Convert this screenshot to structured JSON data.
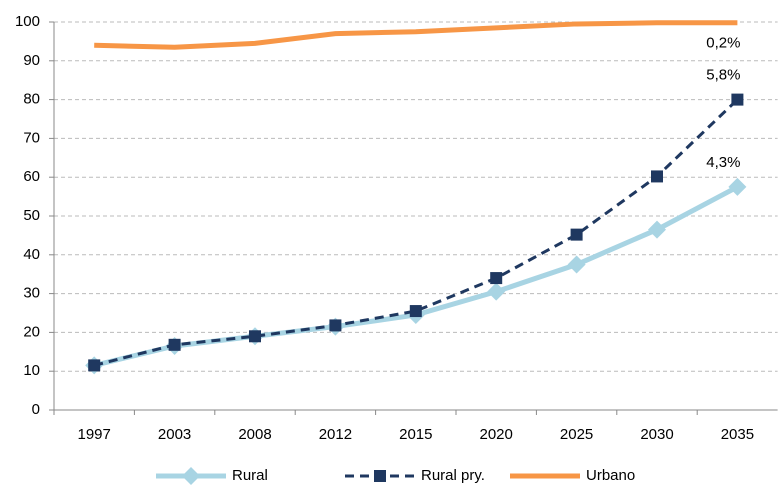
{
  "chart_data": {
    "type": "line",
    "categories": [
      "1997",
      "2003",
      "2008",
      "2012",
      "2015",
      "2020",
      "2025",
      "2030",
      "2035"
    ],
    "series": [
      {
        "name": "Rural",
        "color": "#a8d4e3",
        "marker": "diamond",
        "dash": false,
        "values": [
          11.5,
          16.5,
          19,
          21.5,
          24.5,
          30.5,
          37.5,
          46.5,
          57.5
        ],
        "end_label": "4,3%"
      },
      {
        "name": "Rural pry.",
        "color": "#1f3860",
        "marker": "square",
        "dash": true,
        "values": [
          11.5,
          16.8,
          19,
          21.8,
          25.5,
          34,
          45.2,
          60.2,
          80
        ],
        "end_label": "5,8%"
      },
      {
        "name": "Urbano",
        "color": "#f79646",
        "marker": "none",
        "dash": false,
        "values": [
          94,
          93.5,
          94.5,
          97,
          97.5,
          98.5,
          99.5,
          99.8,
          99.8
        ],
        "end_label": "0,2%"
      }
    ],
    "ylim": [
      0,
      100
    ],
    "yticks": [
      0,
      10,
      20,
      30,
      40,
      50,
      60,
      70,
      80,
      90,
      100
    ],
    "grid": true,
    "legend": "bottom"
  }
}
